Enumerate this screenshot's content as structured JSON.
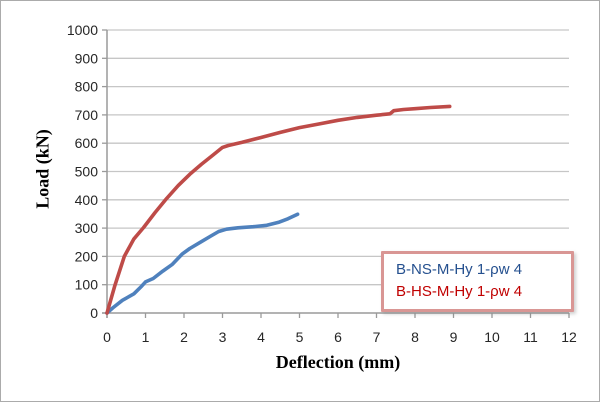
{
  "chart_data": {
    "type": "line",
    "title": "",
    "xlabel": "Deflection (mm)",
    "ylabel": "Load (kN)",
    "xlim": [
      0,
      12
    ],
    "ylim": [
      0,
      1000
    ],
    "x_tick_step": 1,
    "y_tick_step": 100,
    "grid": "horizontal gridlines on, light gray",
    "legend_position": "inside-bottom-right boxed",
    "legend_border_color": "#D99694",
    "series": [
      {
        "name": "B-NS-M-Hy 1-ρw 4",
        "color": "#4F81BD",
        "label_color": "#25508F",
        "points": [
          [
            0,
            0
          ],
          [
            0.15,
            18
          ],
          [
            0.4,
            45
          ],
          [
            0.7,
            68
          ],
          [
            0.9,
            95
          ],
          [
            1.0,
            110
          ],
          [
            1.2,
            122
          ],
          [
            1.45,
            148
          ],
          [
            1.7,
            172
          ],
          [
            1.95,
            208
          ],
          [
            2.15,
            228
          ],
          [
            2.45,
            252
          ],
          [
            2.7,
            272
          ],
          [
            2.9,
            288
          ],
          [
            3.1,
            296
          ],
          [
            3.4,
            301
          ],
          [
            3.8,
            305
          ],
          [
            4.15,
            310
          ],
          [
            4.45,
            320
          ],
          [
            4.7,
            333
          ],
          [
            4.95,
            349
          ]
        ]
      },
      {
        "name": "B-HS-M-Hy 1-ρw 4",
        "color": "#BE4B48",
        "label_color": "#C00000",
        "points": [
          [
            0,
            0
          ],
          [
            0.2,
            95
          ],
          [
            0.45,
            200
          ],
          [
            0.7,
            262
          ],
          [
            0.95,
            302
          ],
          [
            1.25,
            355
          ],
          [
            1.55,
            405
          ],
          [
            1.85,
            450
          ],
          [
            2.15,
            490
          ],
          [
            2.45,
            525
          ],
          [
            2.75,
            558
          ],
          [
            3.0,
            585
          ],
          [
            3.15,
            592
          ],
          [
            3.5,
            603
          ],
          [
            4.0,
            620
          ],
          [
            4.5,
            638
          ],
          [
            5.0,
            655
          ],
          [
            5.5,
            668
          ],
          [
            6.0,
            681
          ],
          [
            6.5,
            691
          ],
          [
            7.0,
            699
          ],
          [
            7.35,
            704
          ],
          [
            7.45,
            715
          ],
          [
            7.7,
            719
          ],
          [
            8.0,
            722
          ],
          [
            8.4,
            726
          ],
          [
            8.9,
            730
          ]
        ]
      }
    ]
  }
}
